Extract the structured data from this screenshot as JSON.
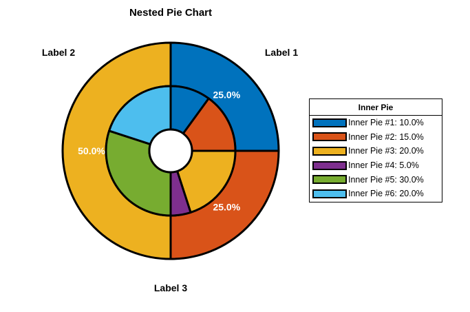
{
  "chart_data": {
    "type": "pie",
    "title": "Nested Pie Chart",
    "outer": {
      "slices": [
        {
          "label": "Label 1",
          "value": 25.0,
          "percent_label": "25.0%",
          "color": "#0072BD"
        },
        {
          "label": "Label 2",
          "value": 25.0,
          "percent_label": "25.0%",
          "color": "#D95319"
        },
        {
          "label": "Label 3",
          "value": 50.0,
          "percent_label": "50.0%",
          "color": "#EDB120"
        }
      ]
    },
    "inner": {
      "legend_title": "Inner Pie",
      "slices": [
        {
          "label": "Inner Pie #1: 10.0%",
          "value": 10.0,
          "color": "#0072BD"
        },
        {
          "label": "Inner Pie #2: 15.0%",
          "value": 15.0,
          "color": "#D95319"
        },
        {
          "label": "Inner Pie #3: 20.0%",
          "value": 20.0,
          "color": "#EDB120"
        },
        {
          "label": "Inner Pie #4: 5.0%",
          "value": 5.0,
          "color": "#7E2F8E"
        },
        {
          "label": "Inner Pie #5: 30.0%",
          "value": 30.0,
          "color": "#77AC30"
        },
        {
          "label": "Inner Pie #6: 20.0%",
          "value": 20.0,
          "color": "#4DBEEE"
        }
      ]
    },
    "legend_position": "right"
  }
}
